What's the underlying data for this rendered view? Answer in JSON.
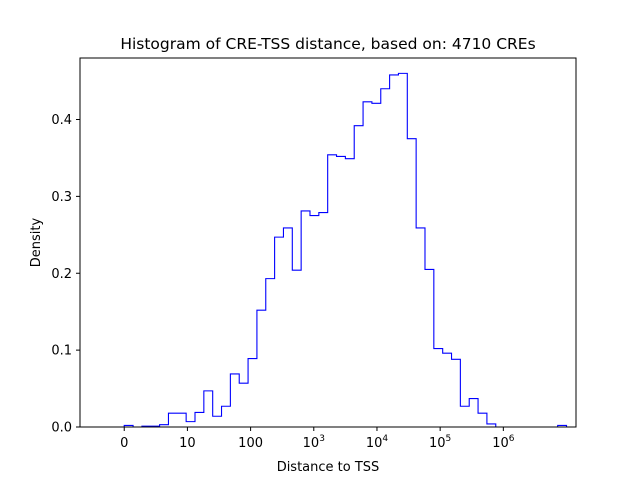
{
  "chart_data": {
    "type": "histogram",
    "title": "Histogram of CRE-TSS distance, based on: 4710 CREs",
    "xlabel": "Distance to TSS",
    "ylabel": "Density",
    "x_scale": "log10(distance + 1)",
    "xlim": [
      -0.7,
      7.15
    ],
    "ylim": [
      0,
      0.48
    ],
    "grid": false,
    "legend": "none",
    "line_color": "#0000ff",
    "x_ticks": [
      {
        "value": 0,
        "base": "0",
        "sup": ""
      },
      {
        "value": 1,
        "base": "10",
        "sup": ""
      },
      {
        "value": 2,
        "base": "100",
        "sup": ""
      },
      {
        "value": 3,
        "base": "10",
        "sup": "3"
      },
      {
        "value": 4,
        "base": "10",
        "sup": "4"
      },
      {
        "value": 5,
        "base": "10",
        "sup": "5"
      },
      {
        "value": 6,
        "base": "10",
        "sup": "6"
      }
    ],
    "y_ticks": [
      {
        "value": 0.0,
        "label": "0.0"
      },
      {
        "value": 0.1,
        "label": "0.1"
      },
      {
        "value": 0.2,
        "label": "0.2"
      },
      {
        "value": 0.3,
        "label": "0.3"
      },
      {
        "value": 0.4,
        "label": "0.4"
      }
    ],
    "bin_edges": [
      0,
      0.14,
      0.28,
      0.42,
      0.56,
      0.7,
      0.84,
      0.98,
      1.12,
      1.26,
      1.4,
      1.54,
      1.68,
      1.82,
      1.96,
      2.1,
      2.24,
      2.38,
      2.52,
      2.66,
      2.8,
      2.94,
      3.08,
      3.22,
      3.36,
      3.5,
      3.64,
      3.78,
      3.92,
      4.06,
      4.2,
      4.34,
      4.48,
      4.62,
      4.76,
      4.9,
      5.04,
      5.18,
      5.32,
      5.46,
      5.6,
      5.74,
      5.88,
      6.02,
      6.16,
      6.3,
      6.44,
      6.58,
      6.72,
      6.86,
      7.0
    ],
    "densities": [
      0.002,
      0.0,
      0.001,
      0.001,
      0.003,
      0.018,
      0.018,
      0.007,
      0.019,
      0.047,
      0.014,
      0.027,
      0.069,
      0.057,
      0.089,
      0.152,
      0.193,
      0.247,
      0.259,
      0.204,
      0.281,
      0.275,
      0.279,
      0.354,
      0.352,
      0.349,
      0.392,
      0.423,
      0.421,
      0.44,
      0.458,
      0.46,
      0.375,
      0.259,
      0.205,
      0.102,
      0.096,
      0.088,
      0.027,
      0.037,
      0.018,
      0.004,
      0.0,
      0.0,
      0.0,
      0.0,
      0.0,
      0.0,
      0.0,
      0.002
    ]
  }
}
